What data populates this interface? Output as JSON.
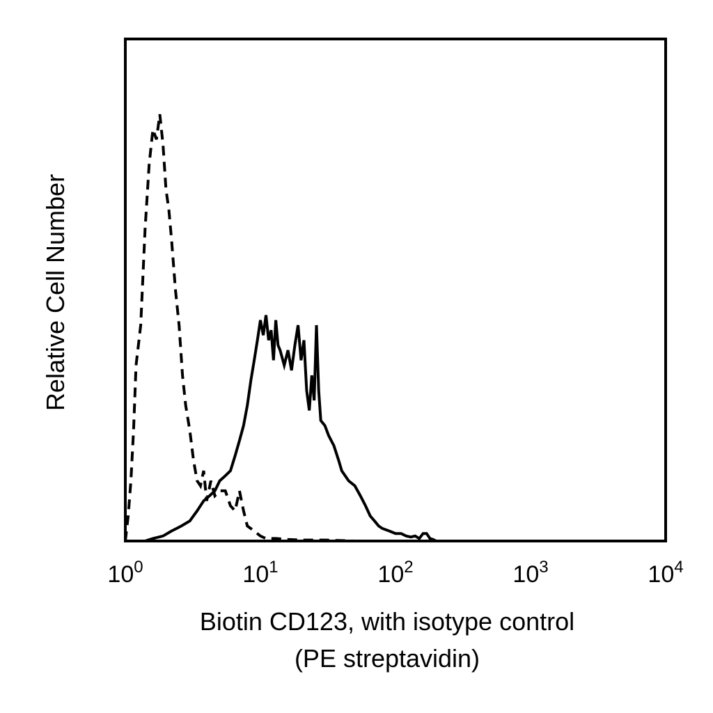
{
  "chart_data": {
    "type": "line",
    "title": "",
    "xlabel_line1": "Biotin CD123, with isotype control",
    "xlabel_line2": "(PE streptavidin)",
    "ylabel": "Relative Cell Number",
    "x_scale": "log",
    "xlim": [
      1,
      10000
    ],
    "ylim": [
      0,
      100
    ],
    "grid": false,
    "legend": "none",
    "x_ticks": [
      {
        "base": "10",
        "exp": "0",
        "value": 1
      },
      {
        "base": "10",
        "exp": "1",
        "value": 10
      },
      {
        "base": "10",
        "exp": "2",
        "value": 100
      },
      {
        "base": "10",
        "exp": "3",
        "value": 1000
      },
      {
        "base": "10",
        "exp": "4",
        "value": 10000
      }
    ],
    "series": [
      {
        "style": "dashed",
        "color": "#000000",
        "points": [
          [
            1.0,
            0
          ],
          [
            1.05,
            5
          ],
          [
            1.1,
            12
          ],
          [
            1.15,
            22
          ],
          [
            1.2,
            35
          ],
          [
            1.3,
            43
          ],
          [
            1.4,
            62
          ],
          [
            1.5,
            75
          ],
          [
            1.6,
            82
          ],
          [
            1.7,
            80
          ],
          [
            1.8,
            85
          ],
          [
            1.9,
            79
          ],
          [
            2.0,
            70
          ],
          [
            2.1,
            66
          ],
          [
            2.2,
            60
          ],
          [
            2.35,
            50
          ],
          [
            2.5,
            43
          ],
          [
            2.65,
            33
          ],
          [
            2.8,
            27
          ],
          [
            3.0,
            22
          ],
          [
            3.2,
            16
          ],
          [
            3.4,
            12
          ],
          [
            3.6,
            11
          ],
          [
            3.8,
            14
          ],
          [
            4.0,
            8
          ],
          [
            4.3,
            12
          ],
          [
            4.6,
            9
          ],
          [
            5.0,
            10
          ],
          [
            5.5,
            10
          ],
          [
            6.0,
            7
          ],
          [
            6.5,
            6
          ],
          [
            7.0,
            10
          ],
          [
            7.5,
            6
          ],
          [
            8.0,
            3
          ],
          [
            9.0,
            2
          ],
          [
            10.0,
            1
          ],
          [
            11.0,
            0.5
          ],
          [
            13.0,
            0.5
          ],
          [
            16.0,
            0.3
          ],
          [
            20.0,
            0.2
          ],
          [
            30.0,
            0.2
          ],
          [
            50.0,
            0
          ],
          [
            70.0,
            0
          ]
        ]
      },
      {
        "style": "solid",
        "color": "#000000",
        "points": [
          [
            1.4,
            0
          ],
          [
            1.6,
            0.5
          ],
          [
            1.9,
            1
          ],
          [
            2.2,
            2
          ],
          [
            2.6,
            3
          ],
          [
            3.0,
            4
          ],
          [
            3.4,
            6
          ],
          [
            3.8,
            8
          ],
          [
            4.2,
            9
          ],
          [
            4.6,
            10
          ],
          [
            5.0,
            12
          ],
          [
            5.5,
            13
          ],
          [
            6.0,
            14
          ],
          [
            6.5,
            17
          ],
          [
            7.0,
            20
          ],
          [
            7.5,
            23
          ],
          [
            8.0,
            27
          ],
          [
            8.5,
            32
          ],
          [
            9.0,
            36
          ],
          [
            9.5,
            40
          ],
          [
            10.0,
            44
          ],
          [
            10.5,
            41
          ],
          [
            11.0,
            45
          ],
          [
            11.5,
            40
          ],
          [
            12.0,
            42
          ],
          [
            12.5,
            36
          ],
          [
            13.0,
            44
          ],
          [
            13.5,
            39
          ],
          [
            14.0,
            38
          ],
          [
            15.0,
            35
          ],
          [
            16.0,
            38
          ],
          [
            17.0,
            34
          ],
          [
            18.0,
            39
          ],
          [
            19.0,
            43
          ],
          [
            20.0,
            36
          ],
          [
            21.0,
            40
          ],
          [
            22.0,
            30
          ],
          [
            23.0,
            26
          ],
          [
            24.0,
            33
          ],
          [
            25.0,
            28
          ],
          [
            26.0,
            43
          ],
          [
            27.0,
            30
          ],
          [
            28.0,
            24
          ],
          [
            30.0,
            23
          ],
          [
            32.0,
            21
          ],
          [
            35.0,
            19
          ],
          [
            38.0,
            16
          ],
          [
            40.0,
            14
          ],
          [
            45.0,
            12
          ],
          [
            50.0,
            11
          ],
          [
            55.0,
            9
          ],
          [
            60.0,
            7
          ],
          [
            65.0,
            5
          ],
          [
            70.0,
            4
          ],
          [
            75.0,
            3
          ],
          [
            80.0,
            2.5
          ],
          [
            90.0,
            2
          ],
          [
            100.0,
            1.5
          ],
          [
            110.0,
            1.5
          ],
          [
            120.0,
            1
          ],
          [
            130.0,
            0.8
          ],
          [
            140.0,
            1
          ],
          [
            150.0,
            0.5
          ],
          [
            160.0,
            1.5
          ],
          [
            170.0,
            1.5
          ],
          [
            180.0,
            0.5
          ],
          [
            190.0,
            0.3
          ],
          [
            200.0,
            0
          ]
        ]
      }
    ]
  }
}
